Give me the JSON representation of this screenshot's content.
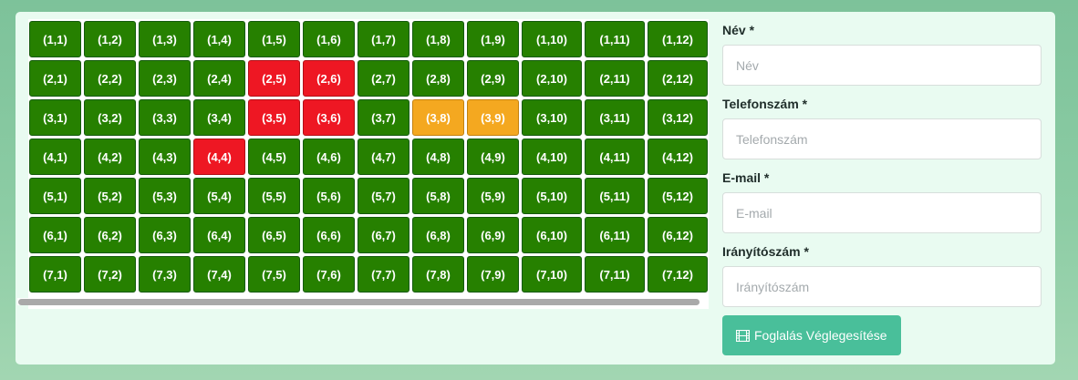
{
  "seats": {
    "rows": [
      [
        "(1,1)",
        "(1,2)",
        "(1,3)",
        "(1,4)",
        "(1,5)",
        "(1,6)",
        "(1,7)",
        "(1,8)",
        "(1,9)",
        "(1,10)",
        "(1,11)",
        "(1,12)"
      ],
      [
        "(2,1)",
        "(2,2)",
        "(2,3)",
        "(2,4)",
        "(2,5)",
        "(2,6)",
        "(2,7)",
        "(2,8)",
        "(2,9)",
        "(2,10)",
        "(2,11)",
        "(2,12)"
      ],
      [
        "(3,1)",
        "(3,2)",
        "(3,3)",
        "(3,4)",
        "(3,5)",
        "(3,6)",
        "(3,7)",
        "(3,8)",
        "(3,9)",
        "(3,10)",
        "(3,11)",
        "(3,12)"
      ],
      [
        "(4,1)",
        "(4,2)",
        "(4,3)",
        "(4,4)",
        "(4,5)",
        "(4,6)",
        "(4,7)",
        "(4,8)",
        "(4,9)",
        "(4,10)",
        "(4,11)",
        "(4,12)"
      ],
      [
        "(5,1)",
        "(5,2)",
        "(5,3)",
        "(5,4)",
        "(5,5)",
        "(5,6)",
        "(5,7)",
        "(5,8)",
        "(5,9)",
        "(5,10)",
        "(5,11)",
        "(5,12)"
      ],
      [
        "(6,1)",
        "(6,2)",
        "(6,3)",
        "(6,4)",
        "(6,5)",
        "(6,6)",
        "(6,7)",
        "(6,8)",
        "(6,9)",
        "(6,10)",
        "(6,11)",
        "(6,12)"
      ],
      [
        "(7,1)",
        "(7,2)",
        "(7,3)",
        "(7,4)",
        "(7,5)",
        "(7,6)",
        "(7,7)",
        "(7,8)",
        "(7,9)",
        "(7,10)",
        "(7,11)",
        "(7,12)"
      ]
    ],
    "taken": [
      "(2,5)",
      "(2,6)",
      "(3,5)",
      "(3,6)",
      "(4,4)"
    ],
    "selected": [
      "(3,8)",
      "(3,9)"
    ],
    "colors": {
      "free": "#268000",
      "taken": "#ee1723",
      "selected": "#f4a820"
    }
  },
  "form": {
    "name_label": "Név *",
    "name_placeholder": "Név",
    "phone_label": "Telefonszám *",
    "phone_placeholder": "Telefonszám",
    "email_label": "E-mail *",
    "email_placeholder": "E-mail",
    "zip_label": "Irányítószám *",
    "zip_placeholder": "Irányítószám",
    "submit_label": "Foglalás Véglegesítése",
    "submit_icon": "film-icon",
    "accent_color": "#49bf9a"
  }
}
